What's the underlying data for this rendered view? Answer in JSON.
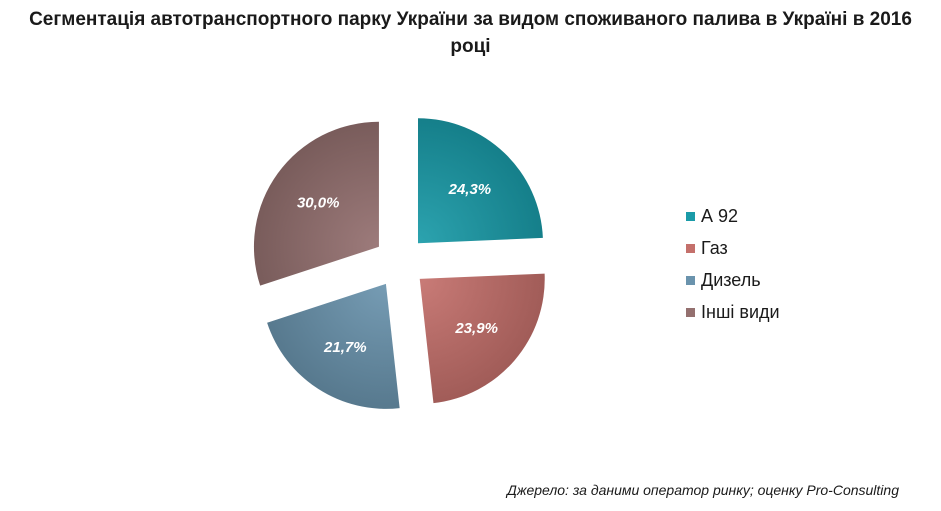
{
  "chart_data": {
    "type": "pie",
    "title_lines": [
      "Сегментація автотранспортного парку України за видом споживаного палива в Україні в 2016",
      "році"
    ],
    "slices": [
      {
        "name": "А 92",
        "value": 24.3,
        "label": "24,3%",
        "color": "#1a9ba8"
      },
      {
        "name": "Газ",
        "value": 23.9,
        "label": "23,9%",
        "color": "#c4706b"
      },
      {
        "name": "Дизель",
        "value": 21.7,
        "label": "21,7%",
        "color": "#6a93ad"
      },
      {
        "name": "Інші види",
        "value": 30.0,
        "label": "30,0%",
        "color": "#94706f"
      }
    ],
    "legend_position": "right",
    "exploded": true
  },
  "source_text": "Джерело: за даними оператор ринку; оценку Pro-Consulting"
}
